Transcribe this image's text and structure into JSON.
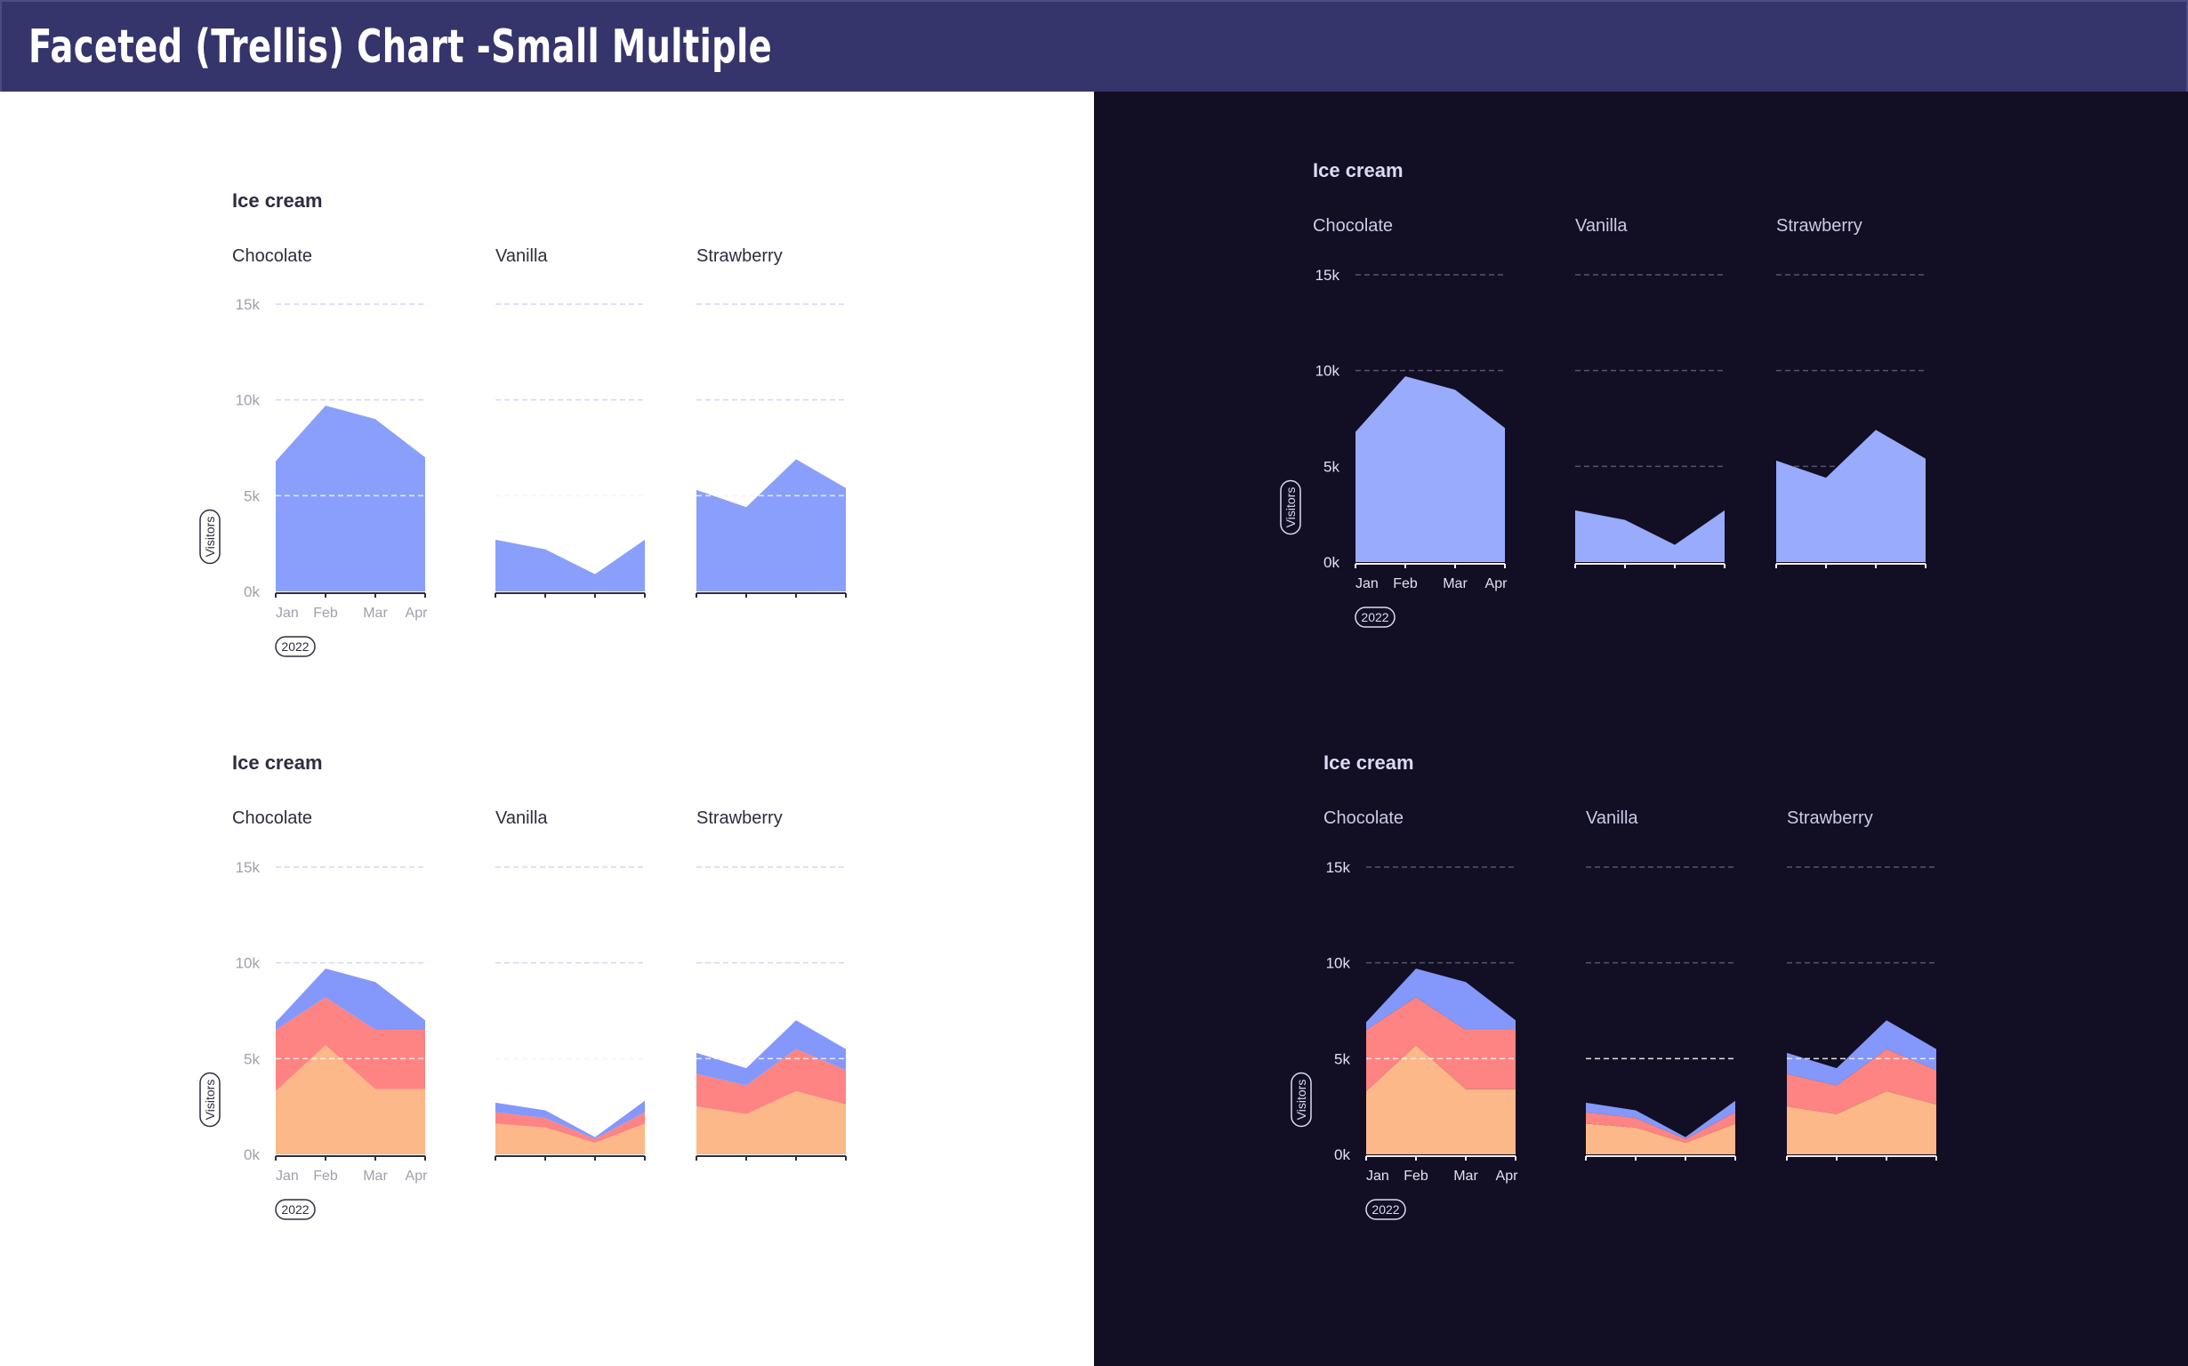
{
  "header": {
    "title": "Faceted (Trellis) Chart -Small Multiple"
  },
  "theme": {
    "light": {
      "bg": "#ffffff",
      "title": "#2d2d3f",
      "facet": "#2d2d3f",
      "tick": "#9ea0aa",
      "grid": "#d4d6f2",
      "axis": "#2d2d3f",
      "badge": "#2d2d3f"
    },
    "dark": {
      "bg": "#120e23",
      "title": "#d9dbf6",
      "facet": "#c8cbe7",
      "tick": "#e0e1f0",
      "grid": "#55556e",
      "axis": "#f0f0f8",
      "badge": "#d9dbf6"
    },
    "series_colors": {
      "Chocolate": "#fcb888",
      "Vanilla": "#fd8483",
      "Strawberry": "#8498fb"
    },
    "single_area_light": "#8a9ffb",
    "single_area_dark": "#99abfd"
  },
  "chart_data": [
    {
      "id": "light-single",
      "type": "area",
      "theme": "light",
      "title": "Ice cream",
      "ylabel": "Visitors",
      "xbadge": "2022",
      "categories": [
        "Jan",
        "Feb",
        "Mar",
        "Apr"
      ],
      "yticks": [
        "0k",
        "5k",
        "10k",
        "15k"
      ],
      "ylim": [
        0,
        15000
      ],
      "facets": [
        {
          "name": "Chocolate",
          "values": [
            6800,
            9700,
            9000,
            7000
          ]
        },
        {
          "name": "Vanilla",
          "values": [
            2700,
            2200,
            900,
            2700
          ]
        },
        {
          "name": "Strawberry",
          "values": [
            5300,
            4400,
            6900,
            5400
          ]
        }
      ]
    },
    {
      "id": "dark-single",
      "type": "area",
      "theme": "dark",
      "title": "Ice cream",
      "ylabel": "Visitors",
      "xbadge": "2022",
      "categories": [
        "Jan",
        "Feb",
        "Mar",
        "Apr"
      ],
      "yticks": [
        "0k",
        "5k",
        "10k",
        "15k"
      ],
      "ylim": [
        0,
        15000
      ],
      "facets": [
        {
          "name": "Chocolate",
          "values": [
            6800,
            9700,
            9000,
            7000
          ]
        },
        {
          "name": "Vanilla",
          "values": [
            2700,
            2200,
            900,
            2700
          ]
        },
        {
          "name": "Strawberry",
          "values": [
            5300,
            4400,
            6900,
            5400
          ]
        }
      ]
    },
    {
      "id": "light-stacked",
      "type": "area",
      "stacked": true,
      "theme": "light",
      "title": "Ice cream",
      "ylabel": "Visitors",
      "xbadge": "2022",
      "categories": [
        "Jan",
        "Feb",
        "Mar",
        "Apr"
      ],
      "yticks": [
        "0k",
        "5k",
        "10k",
        "15k"
      ],
      "ylim": [
        0,
        15000
      ],
      "facets": [
        {
          "name": "Chocolate",
          "series": [
            {
              "name": "Chocolate",
              "values": [
                3300,
                5700,
                3400,
                3400
              ]
            },
            {
              "name": "Vanilla",
              "values": [
                3200,
                2500,
                3100,
                3100
              ]
            },
            {
              "name": "Strawberry",
              "values": [
                400,
                1500,
                2500,
                500
              ]
            }
          ]
        },
        {
          "name": "Vanilla",
          "series": [
            {
              "name": "Chocolate",
              "values": [
                1600,
                1400,
                600,
                1600
              ]
            },
            {
              "name": "Vanilla",
              "values": [
                600,
                500,
                200,
                600
              ]
            },
            {
              "name": "Strawberry",
              "values": [
                500,
                400,
                100,
                600
              ]
            }
          ]
        },
        {
          "name": "Strawberry",
          "series": [
            {
              "name": "Chocolate",
              "values": [
                2500,
                2100,
                3300,
                2600
              ]
            },
            {
              "name": "Vanilla",
              "values": [
                1700,
                1500,
                2200,
                1800
              ]
            },
            {
              "name": "Strawberry",
              "values": [
                1100,
                900,
                1500,
                1100
              ]
            }
          ]
        }
      ]
    },
    {
      "id": "dark-stacked",
      "type": "area",
      "stacked": true,
      "theme": "dark",
      "title": "Ice cream",
      "ylabel": "Visitors",
      "xbadge": "2022",
      "categories": [
        "Jan",
        "Feb",
        "Mar",
        "Apr"
      ],
      "yticks": [
        "0k",
        "5k",
        "10k",
        "15k"
      ],
      "ylim": [
        0,
        15000
      ],
      "facets": [
        {
          "name": "Chocolate",
          "series": [
            {
              "name": "Chocolate",
              "values": [
                3300,
                5700,
                3400,
                3400
              ]
            },
            {
              "name": "Vanilla",
              "values": [
                3200,
                2500,
                3100,
                3100
              ]
            },
            {
              "name": "Strawberry",
              "values": [
                400,
                1500,
                2500,
                500
              ]
            }
          ]
        },
        {
          "name": "Vanilla",
          "series": [
            {
              "name": "Chocolate",
              "values": [
                1600,
                1400,
                600,
                1600
              ]
            },
            {
              "name": "Vanilla",
              "values": [
                600,
                500,
                200,
                600
              ]
            },
            {
              "name": "Strawberry",
              "values": [
                500,
                400,
                100,
                600
              ]
            }
          ]
        },
        {
          "name": "Strawberry",
          "series": [
            {
              "name": "Chocolate",
              "values": [
                2500,
                2100,
                3300,
                2600
              ]
            },
            {
              "name": "Vanilla",
              "values": [
                1700,
                1500,
                2200,
                1800
              ]
            },
            {
              "name": "Strawberry",
              "values": [
                1100,
                900,
                1500,
                1100
              ]
            }
          ]
        }
      ]
    }
  ]
}
